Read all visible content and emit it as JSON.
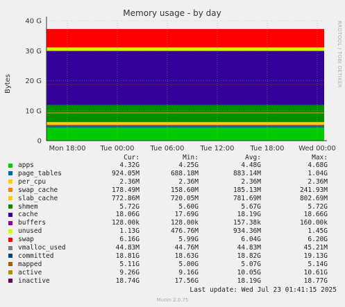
{
  "chart_data": {
    "type": "area",
    "title": "Memory usage - by day",
    "ylabel": "Bytes",
    "side_text": "RRDTOOL / TOBI OETIKER",
    "x_ticks": [
      "Mon 18:00",
      "Tue 00:00",
      "Tue 06:00",
      "Tue 12:00",
      "Tue 18:00",
      "Wed 00:00"
    ],
    "y_ticks": [
      "0",
      "10 G",
      "20 G",
      "30 G",
      "40 G"
    ],
    "ylim": [
      0,
      40
    ],
    "y_unit": "G",
    "stack": [
      {
        "name": "apps",
        "color": "#00cc00",
        "value": 4.32
      },
      {
        "name": "page_tables",
        "color": "#0066b3",
        "value": 0.924
      },
      {
        "name": "per_cpu",
        "color": "#ff8000",
        "value": 0.002
      },
      {
        "name": "swap_cache",
        "color": "#ffcc00",
        "value": 0.178
      },
      {
        "name": "slab_cache",
        "color": "#ffcc00",
        "value": 0.773
      },
      {
        "name": "shmem",
        "color": "#008f00",
        "value": 5.72
      },
      {
        "name": "cache",
        "color": "#330099",
        "value": 18.06
      },
      {
        "name": "buffers",
        "color": "#990099",
        "value": 0.000128
      },
      {
        "name": "unused",
        "color": "#ccff00",
        "value": 1.13
      },
      {
        "name": "swap",
        "color": "#ff0000",
        "value": 6.16
      }
    ],
    "lines": [
      {
        "name": "committed",
        "color": "#00487d",
        "value": 18.81
      },
      {
        "name": "mapped",
        "color": "#b35a00",
        "value": 5.11
      },
      {
        "name": "active",
        "color": "#b38f00",
        "value": 9.26
      },
      {
        "name": "inactive",
        "color": "#6b006b",
        "value": 18.74
      }
    ]
  },
  "legend": {
    "headers": [
      "Cur:",
      "Min:",
      "Avg:",
      "Max:"
    ],
    "rows": [
      {
        "name": "apps",
        "color": "#00cc00",
        "cur": "4.32G",
        "min": "4.25G",
        "avg": "4.48G",
        "max": "4.68G"
      },
      {
        "name": "page_tables",
        "color": "#0066b3",
        "cur": "924.05M",
        "min": "688.18M",
        "avg": "883.14M",
        "max": "1.04G"
      },
      {
        "name": "per_cpu",
        "color": "#ffcc00",
        "cur": "2.36M",
        "min": "2.36M",
        "avg": "2.36M",
        "max": "2.36M"
      },
      {
        "name": "swap_cache",
        "color": "#ff8000",
        "cur": "178.49M",
        "min": "158.60M",
        "avg": "185.13M",
        "max": "241.93M"
      },
      {
        "name": "slab_cache",
        "color": "#ffcc00",
        "cur": "772.86M",
        "min": "720.05M",
        "avg": "781.69M",
        "max": "802.69M"
      },
      {
        "name": "shmem",
        "color": "#008f00",
        "cur": "5.72G",
        "min": "5.60G",
        "avg": "5.67G",
        "max": "5.72G"
      },
      {
        "name": "cache",
        "color": "#330099",
        "cur": "18.06G",
        "min": "17.69G",
        "avg": "18.19G",
        "max": "18.66G"
      },
      {
        "name": "buffers",
        "color": "#990099",
        "cur": "128.00k",
        "min": "128.00k",
        "avg": "157.38k",
        "max": "160.00k"
      },
      {
        "name": "unused",
        "color": "#ccff00",
        "cur": "1.13G",
        "min": "476.76M",
        "avg": "934.36M",
        "max": "1.45G"
      },
      {
        "name": "swap",
        "color": "#ff0000",
        "cur": "6.16G",
        "min": "5.99G",
        "avg": "6.04G",
        "max": "6.20G"
      },
      {
        "name": "vmalloc_used",
        "color": "#808080",
        "cur": "44.83M",
        "min": "44.76M",
        "avg": "44.83M",
        "max": "45.21M"
      },
      {
        "name": "committed",
        "color": "#00487d",
        "cur": "18.81G",
        "min": "18.63G",
        "avg": "18.82G",
        "max": "19.13G"
      },
      {
        "name": "mapped",
        "color": "#b35a00",
        "cur": "5.11G",
        "min": "5.00G",
        "avg": "5.07G",
        "max": "5.14G"
      },
      {
        "name": "active",
        "color": "#b38f00",
        "cur": "9.26G",
        "min": "9.16G",
        "avg": "10.05G",
        "max": "10.61G"
      },
      {
        "name": "inactive",
        "color": "#6b006b",
        "cur": "18.74G",
        "min": "17.56G",
        "avg": "18.19G",
        "max": "18.77G"
      }
    ]
  },
  "last_update": "Last update: Wed Jul 23 01:41:15 2025",
  "footer": "Munin 2.0.75"
}
